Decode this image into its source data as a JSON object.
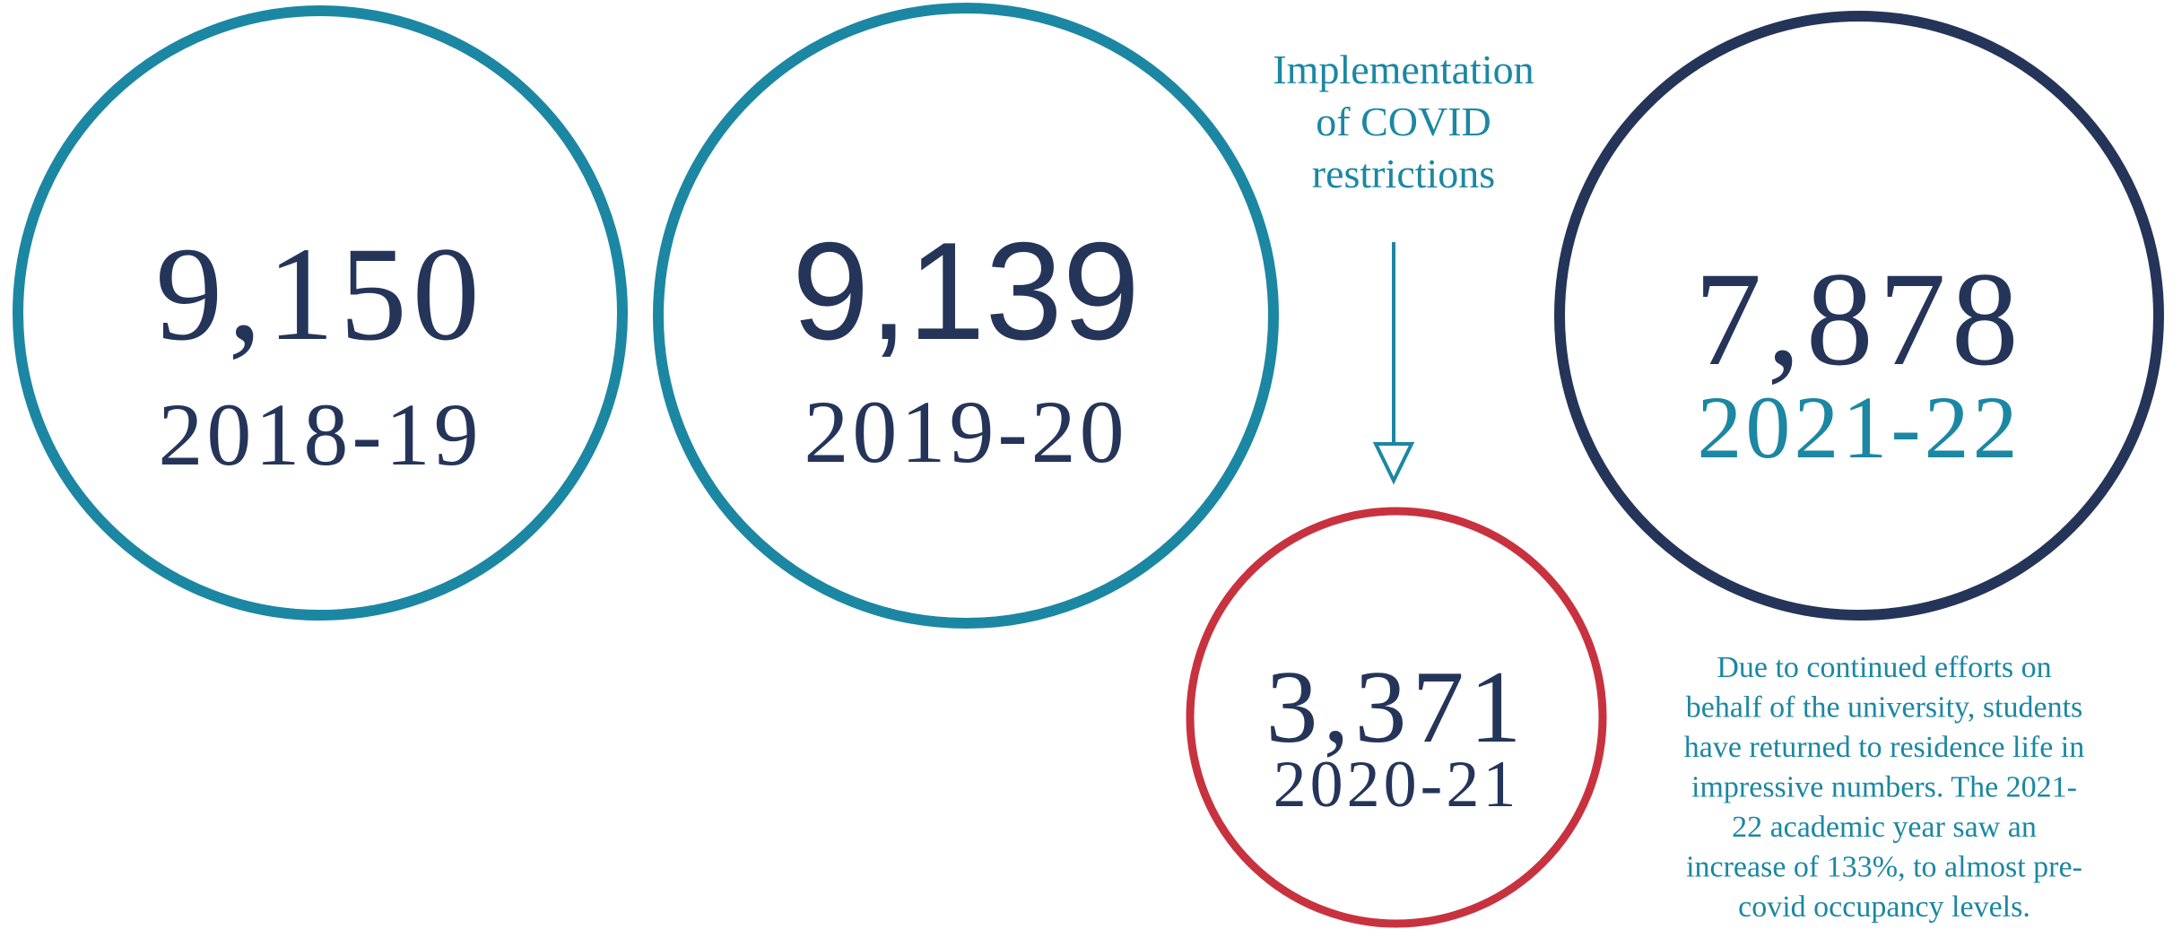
{
  "circles": [
    {
      "value": "9,150",
      "year": "2018-19"
    },
    {
      "value": "9,139",
      "year": "2019-20"
    },
    {
      "value": "3,371",
      "year": "2020-21"
    },
    {
      "value": "7,878",
      "year": "2021-22"
    }
  ],
  "annotation": {
    "lines": [
      "Implementation",
      "of COVID",
      "restrictions"
    ]
  },
  "note": {
    "lines": [
      "Due to continued efforts on",
      "behalf of the university, students",
      "have returned to residence life in",
      "impressive numbers. The 2021-",
      "22 academic year saw an",
      "increase of 133%, to almost pre-",
      "covid occupancy levels."
    ]
  }
}
